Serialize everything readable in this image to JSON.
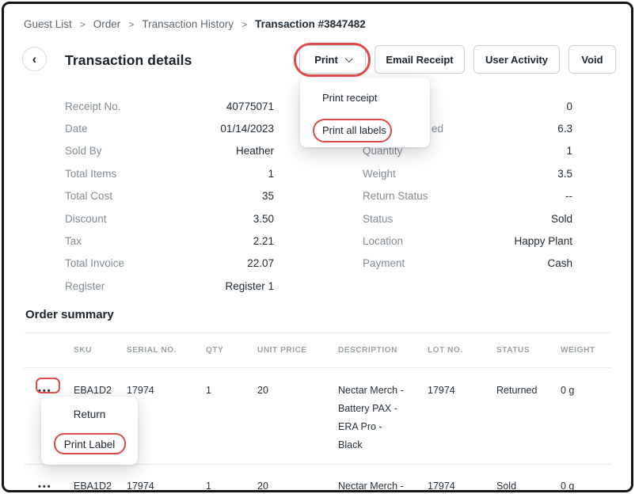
{
  "annotation_color": "#df4a4a",
  "breadcrumb": {
    "separator": ">",
    "items": [
      {
        "label": "Guest List",
        "current": false
      },
      {
        "label": "Order",
        "current": false
      },
      {
        "label": "Transaction History",
        "current": false
      },
      {
        "label": "Transaction #3847482",
        "current": true
      }
    ]
  },
  "header": {
    "title": "Transaction details",
    "back_icon": "‹",
    "buttons": [
      {
        "label": "Print",
        "has_dropdown": true,
        "annotated": true
      },
      {
        "label": "Email Receipt",
        "has_dropdown": false,
        "annotated": false
      },
      {
        "label": "User Activity",
        "has_dropdown": false,
        "annotated": false
      },
      {
        "label": "Void",
        "has_dropdown": false,
        "annotated": false
      }
    ]
  },
  "print_menu": {
    "items": [
      {
        "label": "Print receipt",
        "highlighted": false
      },
      {
        "label": "Print all labels",
        "highlighted": true
      }
    ]
  },
  "details": {
    "left": [
      {
        "label": "Receipt No.",
        "value": "40775071"
      },
      {
        "label": "Date",
        "value": "01/14/2023"
      },
      {
        "label": "Sold By",
        "value": "Heather"
      },
      {
        "label": "Total Items",
        "value": "1"
      },
      {
        "label": "Total Cost",
        "value": "35"
      },
      {
        "label": "Discount",
        "value": "3.50"
      },
      {
        "label": "Tax",
        "value": "2.21"
      },
      {
        "label": "Total Invoice",
        "value": "22.07"
      },
      {
        "label": "Register",
        "value": "Register 1"
      }
    ],
    "right": [
      {
        "label": "",
        "value": "0"
      },
      {
        "label": "ed",
        "value": "6.3"
      },
      {
        "label": "Quantity",
        "value": "1"
      },
      {
        "label": "Weight",
        "value": "3.5"
      },
      {
        "label": "Return Status",
        "value": "--"
      },
      {
        "label": "Status",
        "value": "Sold"
      },
      {
        "label": "Location",
        "value": "Happy Plant"
      },
      {
        "label": "Payment",
        "value": "Cash"
      }
    ]
  },
  "order_summary": {
    "title": "Order summary",
    "kebab_icon": "•••",
    "columns": [
      "SKU",
      "SERIAL NO.",
      "QTY",
      "UNIT PRICE",
      "DESCRIPTION",
      "LOT NO.",
      "STATUS",
      "WEIGHT"
    ],
    "rows": [
      {
        "sku": "EBA1D2",
        "serial": "17974",
        "qty": "1",
        "unit_price": "20",
        "description": "Nectar Merch -\nBattery PAX -\nERA Pro -\nBlack",
        "lot": "17974",
        "status": "Returned",
        "weight": "0 g",
        "kebab_annotated": true
      },
      {
        "sku": "EBA1D2",
        "serial": "17974",
        "qty": "1",
        "unit_price": "20",
        "description": "Nectar Merch -",
        "lot": "17974",
        "status": "Sold",
        "weight": "0 g",
        "kebab_annotated": false
      }
    ]
  },
  "row_menu": {
    "items": [
      {
        "label": "Return",
        "highlighted": false
      },
      {
        "label": "Print Label",
        "highlighted": true
      }
    ]
  }
}
